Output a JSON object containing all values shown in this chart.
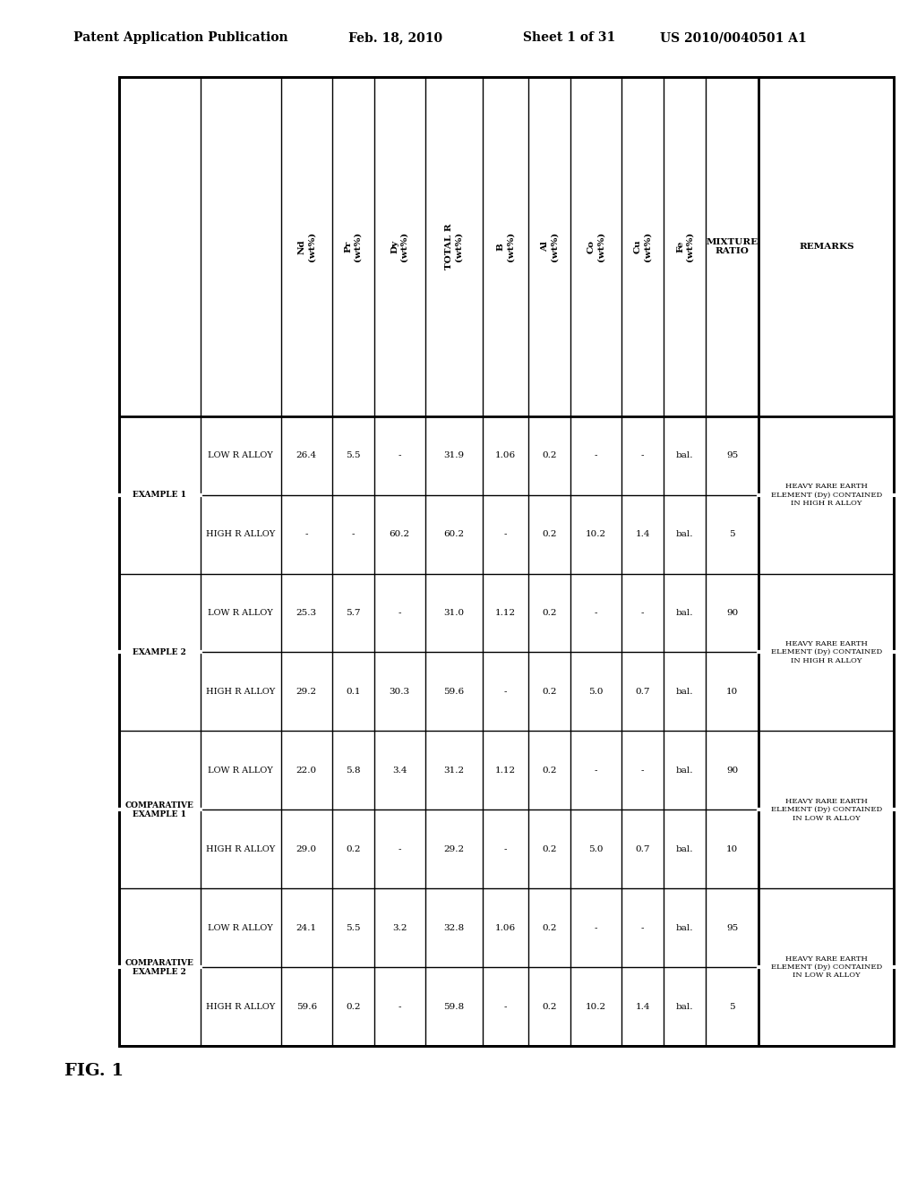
{
  "header_line1": "Patent Application Publication",
  "header_date": "Feb. 18, 2010",
  "header_sheet": "Sheet 1 of 31",
  "header_patent": "US 2010/0040501 A1",
  "fig_label": "FIG. 1",
  "columns": [
    "",
    "",
    "Nd\n(wt%)",
    "Pr\n(wt%)",
    "Dy\n(wt%)",
    "TOTAL R\n(wt%)",
    "B\n(wt%)",
    "Al\n(wt%)",
    "Co\n(wt%)",
    "Cu\n(wt%)",
    "Fe\n(wt%)",
    "MIXTURE\nRATIO",
    "REMARKS"
  ],
  "rows": [
    {
      "group": "EXAMPLE 1",
      "alloy": "LOW R ALLOY",
      "nd": "26.4",
      "pr": "5.5",
      "dy": "-",
      "total_r": "31.9",
      "b": "1.06",
      "al": "0.2",
      "co": "-",
      "cu": "-",
      "fe": "bal.",
      "mixture": "95",
      "remarks": "HEAVY RARE EARTH\nELEMENT (Dy) CONTAINED\nIN HIGH R ALLOY"
    },
    {
      "group": "EXAMPLE 1",
      "alloy": "HIGH R ALLOY",
      "nd": "-",
      "pr": "-",
      "dy": "60.2",
      "total_r": "60.2",
      "b": "-",
      "al": "0.2",
      "co": "10.2",
      "cu": "1.4",
      "fe": "bal.",
      "mixture": "5",
      "remarks": ""
    },
    {
      "group": "EXAMPLE 2",
      "alloy": "LOW R ALLOY",
      "nd": "25.3",
      "pr": "5.7",
      "dy": "-",
      "total_r": "31.0",
      "b": "1.12",
      "al": "0.2",
      "co": "-",
      "cu": "-",
      "fe": "bal.",
      "mixture": "90",
      "remarks": "HEAVY RARE EARTH\nELEMENT (Dy) CONTAINED\nIN HIGH R ALLOY"
    },
    {
      "group": "EXAMPLE 2",
      "alloy": "HIGH R ALLOY",
      "nd": "29.2",
      "pr": "0.1",
      "dy": "30.3",
      "total_r": "59.6",
      "b": "-",
      "al": "0.2",
      "co": "5.0",
      "cu": "0.7",
      "fe": "bal.",
      "mixture": "10",
      "remarks": ""
    },
    {
      "group": "COMPARATIVE\nEXAMPLE 1",
      "alloy": "LOW R ALLOY",
      "nd": "22.0",
      "pr": "5.8",
      "dy": "3.4",
      "total_r": "31.2",
      "b": "1.12",
      "al": "0.2",
      "co": "-",
      "cu": "-",
      "fe": "bal.",
      "mixture": "90",
      "remarks": "HEAVY RARE EARTH\nELEMENT (Dy) CONTAINED\nIN LOW R ALLOY"
    },
    {
      "group": "COMPARATIVE\nEXAMPLE 1",
      "alloy": "HIGH R ALLOY",
      "nd": "29.0",
      "pr": "0.2",
      "dy": "-",
      "total_r": "29.2",
      "b": "-",
      "al": "0.2",
      "co": "5.0",
      "cu": "0.7",
      "fe": "bal.",
      "mixture": "10",
      "remarks": ""
    },
    {
      "group": "COMPARATIVE\nEXAMPLE 2",
      "alloy": "LOW R ALLOY",
      "nd": "24.1",
      "pr": "5.5",
      "dy": "3.2",
      "total_r": "32.8",
      "b": "1.06",
      "al": "0.2",
      "co": "-",
      "cu": "-",
      "fe": "bal.",
      "mixture": "95",
      "remarks": "HEAVY RARE EARTH\nELEMENT (Dy) CONTAINED\nIN LOW R ALLOY"
    },
    {
      "group": "COMPARATIVE\nEXAMPLE 2",
      "alloy": "HIGH R ALLOY",
      "nd": "59.6",
      "pr": "0.2",
      "dy": "-",
      "total_r": "59.8",
      "b": "-",
      "al": "0.2",
      "co": "10.2",
      "cu": "1.4",
      "fe": "bal.",
      "mixture": "5",
      "remarks": ""
    }
  ],
  "background_color": "#ffffff",
  "text_color": "#000000",
  "line_color": "#000000"
}
